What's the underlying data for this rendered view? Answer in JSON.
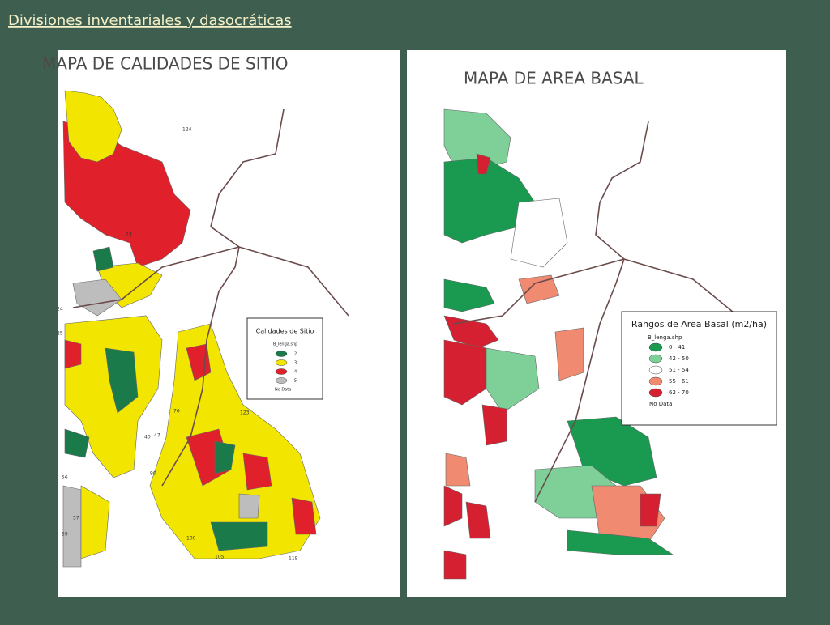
{
  "header": {
    "title": "Divisiones inventariales y dasocráticas"
  },
  "maps": [
    {
      "title": "MAPA DE CALIDADES DE SITIO",
      "legend": {
        "title": "Calidades de Sitio",
        "file": "B_lenga.shp",
        "items": [
          {
            "label": "2",
            "color": "#1a7a4a"
          },
          {
            "label": "3",
            "color": "#f2e600"
          },
          {
            "label": "4",
            "color": "#e0202a"
          },
          {
            "label": "5",
            "color": "#bdbdbd"
          },
          {
            "label": "No Data",
            "color": null
          }
        ]
      },
      "labels": [
        "124",
        "23",
        "24",
        "25",
        "40",
        "47",
        "56",
        "57",
        "59",
        "76",
        "90",
        "100",
        "105",
        "123",
        "119"
      ]
    },
    {
      "title": "MAPA DE AREA BASAL",
      "legend": {
        "title": "Rangos de Area Basal (m2/ha)",
        "file": "B_lenga.shp",
        "items": [
          {
            "label": "0 - 41",
            "color": "#1a9a50"
          },
          {
            "label": "42 - 50",
            "color": "#7fcf98"
          },
          {
            "label": "51 - 54",
            "color": "#ffffff"
          },
          {
            "label": "55 - 61",
            "color": "#f08a70"
          },
          {
            "label": "62 - 70",
            "color": "#d42030"
          },
          {
            "label": "No Data",
            "color": null
          }
        ]
      }
    }
  ]
}
